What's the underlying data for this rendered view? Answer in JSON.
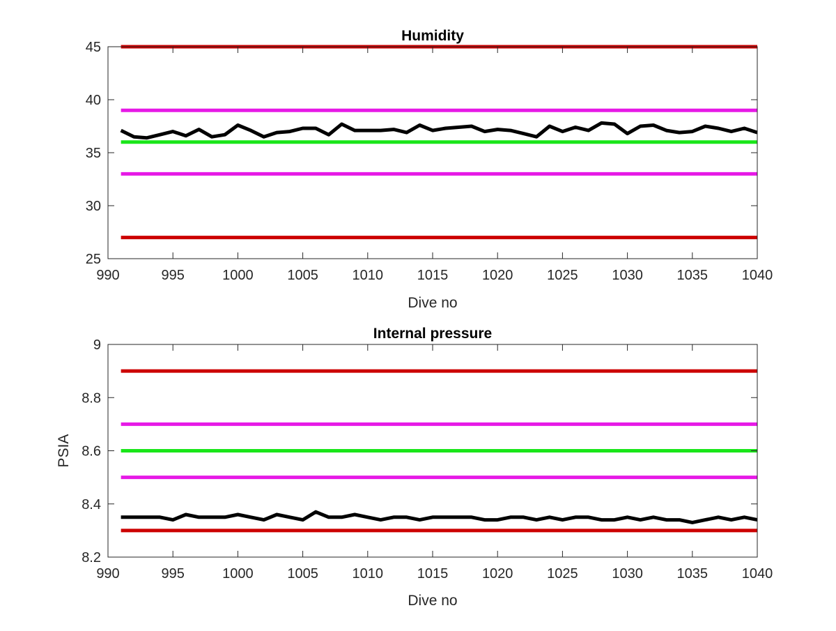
{
  "chart_data": [
    {
      "type": "line",
      "title": "Humidity",
      "xlabel": "Dive no",
      "ylabel": "",
      "xlim": [
        990,
        1040
      ],
      "ylim": [
        25,
        45
      ],
      "xticks": [
        990,
        995,
        1000,
        1005,
        1010,
        1015,
        1020,
        1025,
        1030,
        1035,
        1040
      ],
      "yticks": [
        25,
        30,
        35,
        40,
        45
      ],
      "grid": false,
      "box": true,
      "thresholds": [
        {
          "y": 45,
          "color": "#cc0000"
        },
        {
          "y": 39,
          "color": "#e619e6"
        },
        {
          "y": 36,
          "color": "#19e619"
        },
        {
          "y": 33,
          "color": "#e619e6"
        },
        {
          "y": 27,
          "color": "#cc0000"
        }
      ],
      "threshold_x": [
        991,
        1040
      ],
      "series": [
        {
          "color": "#000000",
          "x": [
            991,
            992,
            993,
            994,
            995,
            996,
            997,
            998,
            999,
            1000,
            1001,
            1002,
            1003,
            1004,
            1005,
            1006,
            1007,
            1008,
            1009,
            1010,
            1011,
            1012,
            1013,
            1014,
            1015,
            1016,
            1017,
            1018,
            1019,
            1020,
            1021,
            1022,
            1023,
            1024,
            1025,
            1026,
            1027,
            1028,
            1029,
            1030,
            1031,
            1032,
            1033,
            1034,
            1035,
            1036,
            1037,
            1038,
            1039,
            1040
          ],
          "values": [
            37.1,
            36.5,
            36.4,
            36.7,
            37.0,
            36.6,
            37.2,
            36.5,
            36.7,
            37.6,
            37.1,
            36.5,
            36.9,
            37.0,
            37.3,
            37.3,
            36.7,
            37.7,
            37.1,
            37.1,
            37.1,
            37.2,
            36.9,
            37.6,
            37.1,
            37.3,
            37.4,
            37.5,
            37.0,
            37.2,
            37.1,
            36.8,
            36.5,
            37.5,
            37.0,
            37.4,
            37.1,
            37.8,
            37.7,
            36.8,
            37.5,
            37.6,
            37.1,
            36.9,
            37.0,
            37.5,
            37.3,
            37.0,
            37.3,
            36.9
          ]
        }
      ]
    },
    {
      "type": "line",
      "title": "Internal pressure",
      "xlabel": "Dive no",
      "ylabel": "PSIA",
      "xlim": [
        990,
        1040
      ],
      "ylim": [
        8.2,
        9
      ],
      "xticks": [
        990,
        995,
        1000,
        1005,
        1010,
        1015,
        1020,
        1025,
        1030,
        1035,
        1040
      ],
      "yticks": [
        "8.2",
        "8.4",
        "8.6",
        "8.8",
        "9"
      ],
      "grid": false,
      "box": true,
      "thresholds": [
        {
          "y": 8.9,
          "color": "#cc0000"
        },
        {
          "y": 8.7,
          "color": "#e619e6"
        },
        {
          "y": 8.6,
          "color": "#19e619"
        },
        {
          "y": 8.5,
          "color": "#e619e6"
        },
        {
          "y": 8.3,
          "color": "#cc0000"
        }
      ],
      "threshold_x": [
        991,
        1040
      ],
      "series": [
        {
          "color": "#000000",
          "x": [
            991,
            992,
            993,
            994,
            995,
            996,
            997,
            998,
            999,
            1000,
            1001,
            1002,
            1003,
            1004,
            1005,
            1006,
            1007,
            1008,
            1009,
            1010,
            1011,
            1012,
            1013,
            1014,
            1015,
            1016,
            1017,
            1018,
            1019,
            1020,
            1021,
            1022,
            1023,
            1024,
            1025,
            1026,
            1027,
            1028,
            1029,
            1030,
            1031,
            1032,
            1033,
            1034,
            1035,
            1036,
            1037,
            1038,
            1039,
            1040
          ],
          "values": [
            8.35,
            8.35,
            8.35,
            8.35,
            8.34,
            8.36,
            8.35,
            8.35,
            8.35,
            8.36,
            8.35,
            8.34,
            8.36,
            8.35,
            8.34,
            8.37,
            8.35,
            8.35,
            8.36,
            8.35,
            8.34,
            8.35,
            8.35,
            8.34,
            8.35,
            8.35,
            8.35,
            8.35,
            8.34,
            8.34,
            8.35,
            8.35,
            8.34,
            8.35,
            8.34,
            8.35,
            8.35,
            8.34,
            8.34,
            8.35,
            8.34,
            8.35,
            8.34,
            8.34,
            8.33,
            8.34,
            8.35,
            8.34,
            8.35,
            8.34
          ]
        }
      ]
    }
  ]
}
